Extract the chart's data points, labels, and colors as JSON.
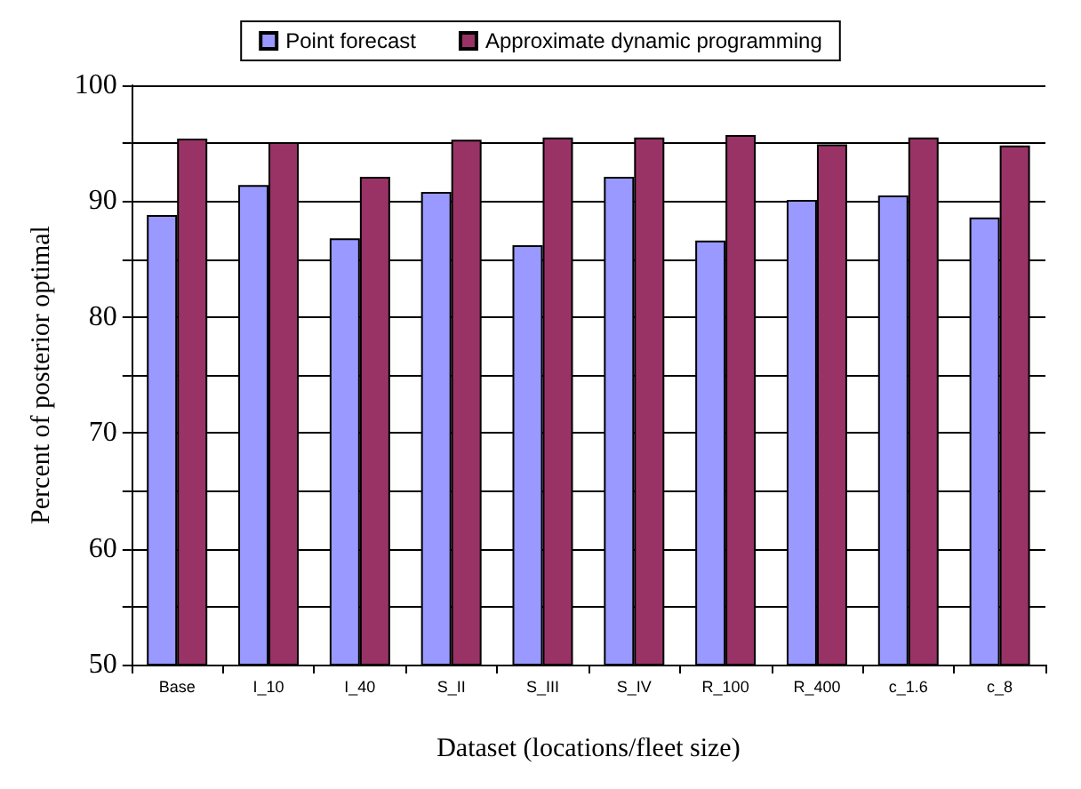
{
  "chart_data": {
    "type": "bar",
    "xlabel": "Dataset (locations/fleet size)",
    "ylabel": "Percent of posterior optimal",
    "categories": [
      "Base",
      "I_10",
      "I_40",
      "S_II",
      "S_III",
      "S_IV",
      "R_100",
      "R_400",
      "c_1.6",
      "c_8"
    ],
    "series": [
      {
        "name": "Point forecast",
        "color": "#9999ff",
        "values": [
          88.8,
          91.4,
          86.8,
          90.8,
          86.2,
          92.1,
          86.6,
          90.1,
          90.5,
          88.6
        ]
      },
      {
        "name": "Approximate dynamic programming",
        "color": "#993366",
        "values": [
          95.4,
          95.1,
          92.1,
          95.3,
          95.5,
          95.5,
          95.7,
          94.9,
          95.5,
          94.8
        ]
      }
    ],
    "ylim": [
      50,
      100
    ],
    "yticks": [
      50,
      {
        "value": 55,
        "label": null
      },
      60,
      {
        "value": 65,
        "label": null
      },
      70,
      {
        "value": 75,
        "label": null
      },
      80,
      {
        "value": 85,
        "label": null
      },
      90,
      {
        "value": 95,
        "label": null
      },
      100
    ],
    "grid": "y",
    "legend": "top"
  }
}
